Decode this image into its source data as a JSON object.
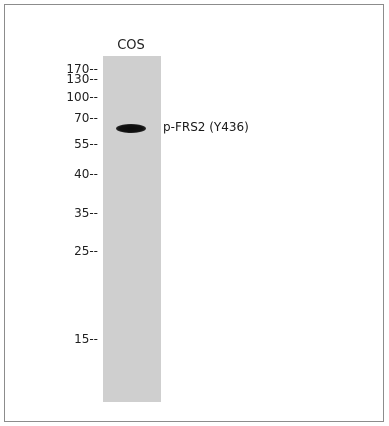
{
  "blot": {
    "lane_label": "COS",
    "band_label": "p-FRS2 (Y436)",
    "markers": [
      "170--",
      "130--",
      "100--",
      "70--",
      "55--",
      "40--",
      "35--",
      "25--",
      "15--"
    ],
    "colors": {
      "lane": "#cfcfcf",
      "band": "#111111",
      "frame": "#8c8c8c"
    }
  }
}
